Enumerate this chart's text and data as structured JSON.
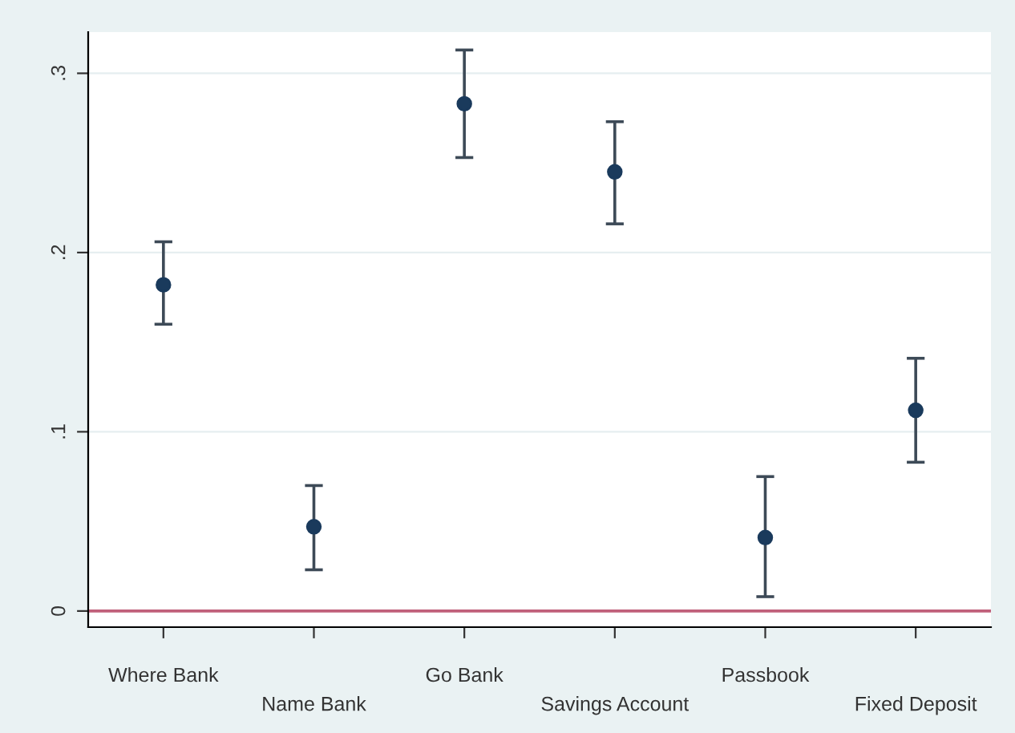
{
  "chart_data": {
    "type": "scatter",
    "categories": [
      "Where Bank",
      "Name Bank",
      "Go Bank",
      "Savings Account",
      "Passbook",
      "Fixed Deposit"
    ],
    "values": [
      0.182,
      0.047,
      0.283,
      0.245,
      0.041,
      0.112
    ],
    "errors": [
      [
        0.16,
        0.206
      ],
      [
        0.023,
        0.07
      ],
      [
        0.253,
        0.313
      ],
      [
        0.216,
        0.273
      ],
      [
        0.008,
        0.075
      ],
      [
        0.083,
        0.141
      ]
    ],
    "color": "#1a3a5c",
    "marker": "circle",
    "ylim": [
      -0.009,
      0.323
    ],
    "yticks": [
      {
        "value": 0,
        "label": "0"
      },
      {
        "value": 0.1,
        "label": ".1"
      },
      {
        "value": 0.2,
        "label": ".2"
      },
      {
        "value": 0.3,
        "label": ".3"
      }
    ],
    "grid": "y",
    "ref_lines": [
      {
        "axis": "y",
        "value": 0,
        "color": "#c0607a"
      }
    ]
  }
}
